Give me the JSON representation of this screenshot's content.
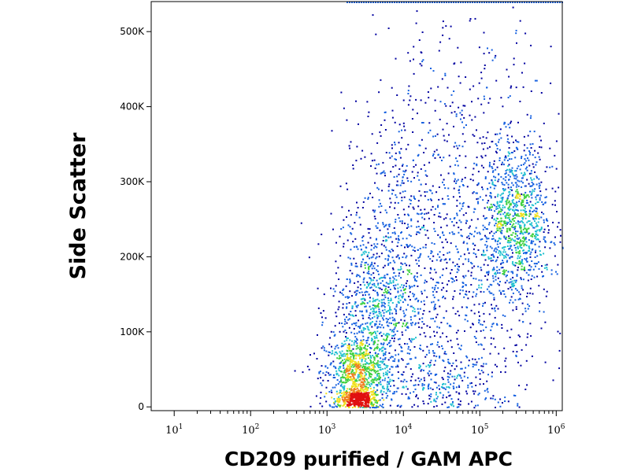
{
  "chart_data": {
    "type": "scatter",
    "subtype": "flow-cytometry density dot plot",
    "title": "",
    "xlabel": "CD209 purified / GAM APC",
    "ylabel": "Side Scatter",
    "x_scale": "log",
    "xlim": [
      5,
      1200000
    ],
    "ylim": [
      -5000,
      540000
    ],
    "x_ticks": [
      {
        "base": "10",
        "exp": "1",
        "value": 10
      },
      {
        "base": "10",
        "exp": "2",
        "value": 100
      },
      {
        "base": "10",
        "exp": "3",
        "value": 1000
      },
      {
        "base": "10",
        "exp": "4",
        "value": 10000
      },
      {
        "base": "10",
        "exp": "5",
        "value": 100000
      },
      {
        "base": "10",
        "exp": "6",
        "value": 1000000
      }
    ],
    "y_ticks": [
      {
        "label": "0",
        "value": 0
      },
      {
        "label": "100K",
        "value": 100000
      },
      {
        "label": "200K",
        "value": 200000
      },
      {
        "label": "300K",
        "value": 300000
      },
      {
        "label": "400K",
        "value": 400000
      },
      {
        "label": "500K",
        "value": 500000
      }
    ],
    "grid": false,
    "color_scale": [
      "#0000a0",
      "#1560e0",
      "#20c0d0",
      "#40d040",
      "#f0e020",
      "#f08020",
      "#e01010"
    ],
    "populations": [
      {
        "x_center": 2500,
        "y_center": 12000,
        "x_log_sd": 0.12,
        "y_sd": 6000,
        "points": 420,
        "core": true
      },
      {
        "x_center": 2500,
        "y_center": 45000,
        "x_log_sd": 0.22,
        "y_sd": 25000,
        "points": 800
      },
      {
        "x_center": 4000,
        "y_center": 130000,
        "x_log_sd": 0.28,
        "y_sd": 55000,
        "points": 700
      },
      {
        "x_center": 8000,
        "y_center": 230000,
        "x_log_sd": 0.35,
        "y_sd": 90000,
        "points": 500
      },
      {
        "x_center": 300000,
        "y_center": 250000,
        "x_log_sd": 0.22,
        "y_sd": 50000,
        "points": 900
      },
      {
        "x_center": 100000,
        "y_center": 180000,
        "x_log_sd": 0.45,
        "y_sd": 90000,
        "points": 600
      },
      {
        "x_center": 50000,
        "y_center": 350000,
        "x_log_sd": 0.6,
        "y_sd": 110000,
        "points": 350
      },
      {
        "x_center": 30000,
        "y_center": 40000,
        "x_log_sd": 0.4,
        "y_sd": 25000,
        "points": 250
      }
    ]
  }
}
